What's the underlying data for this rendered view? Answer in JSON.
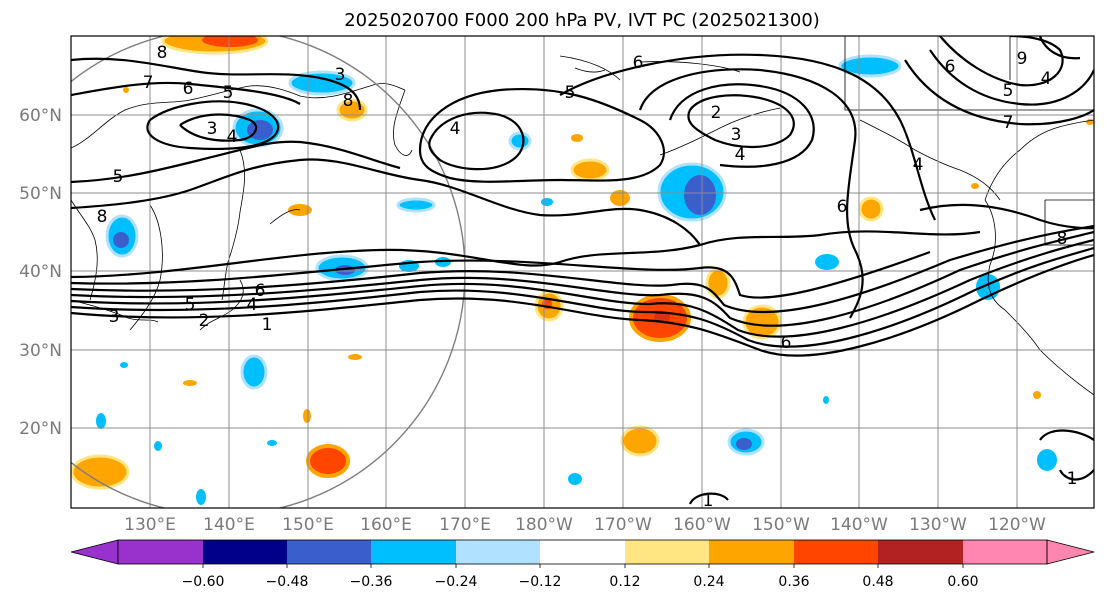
{
  "title": "2025020700 F000 200 hPa PV, IVT PC (2025021300)",
  "lat_labels": [
    "60°N",
    "50°N",
    "40°N",
    "30°N",
    "20°N"
  ],
  "lon_labels": [
    "130°E",
    "140°E",
    "150°E",
    "160°E",
    "170°E",
    "180°W",
    "170°W",
    "160°W",
    "150°W",
    "140°W",
    "130°W",
    "120°W"
  ],
  "colorbar": {
    "ticks": [
      "−0.60",
      "−0.48",
      "−0.36",
      "−0.24",
      "−0.12",
      "0.12",
      "0.24",
      "0.36",
      "0.48",
      "0.60"
    ],
    "colors": [
      "#9932cc",
      "#00008b",
      "#3a5fcd",
      "#00bfff",
      "#b0e2ff",
      "#ffffff",
      "#ffe682",
      "#ffa500",
      "#ff4500",
      "#b22222",
      "#ff86b0"
    ]
  },
  "contour_labels": [
    "8",
    "7",
    "6",
    "5",
    "3",
    "4",
    "5",
    "8",
    "6",
    "5",
    "4",
    "3",
    "2",
    "1",
    "4",
    "6",
    "5",
    "2",
    "3",
    "4",
    "6",
    "6",
    "6",
    "4",
    "5",
    "7",
    "9",
    "8",
    "4",
    "1",
    "1",
    "8",
    "3"
  ]
}
